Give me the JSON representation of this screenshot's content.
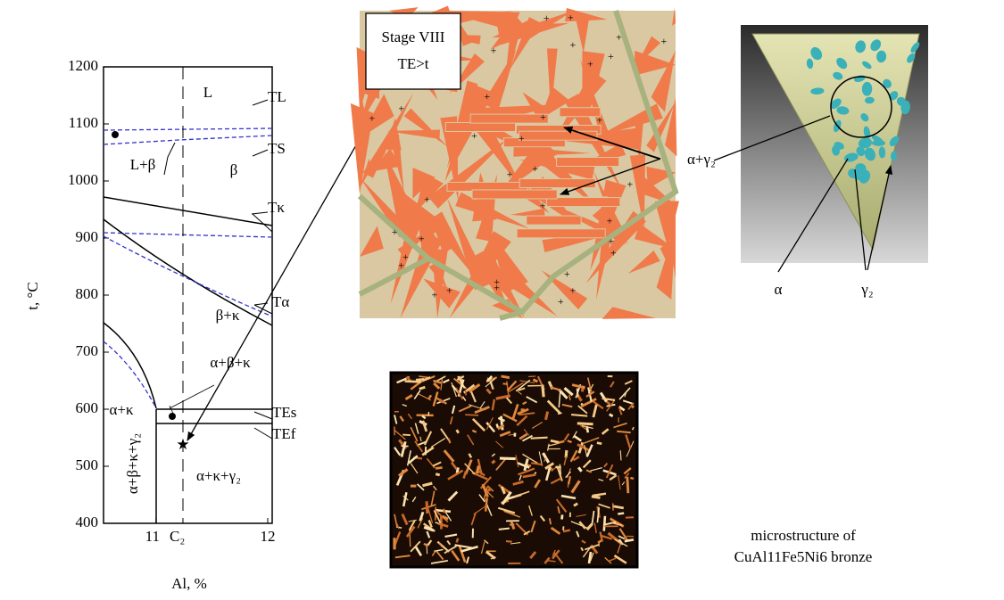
{
  "phase_diagram": {
    "y_label": "t, °C",
    "x_label": "Al, %",
    "ylim": [
      400,
      1200
    ],
    "yticks": [
      400,
      500,
      600,
      700,
      800,
      900,
      1000,
      1100,
      1200
    ],
    "xlim": [
      10.53,
      12.04
    ],
    "xticks": [
      11,
      12
    ],
    "c2_label": "C₂",
    "regions": [
      "L",
      "L+β",
      "β",
      "β+κ",
      "α+β+κ",
      "α+κ",
      "α+β+κ+γ₂",
      "α+κ+γ₂"
    ],
    "callouts": [
      "TL",
      "TS",
      "Tκ",
      "Tα",
      "TEs",
      "TEf"
    ]
  },
  "stage_box": {
    "line1": "Stage VIII",
    "line2": "TE>t"
  },
  "micro_label": "α+γ₂",
  "triangle_labels": {
    "alpha": "α",
    "gamma": "γ₂"
  },
  "caption": {
    "line1": "microstructure of",
    "line2": "CuAl11Fe5Ni6 bronze"
  }
}
